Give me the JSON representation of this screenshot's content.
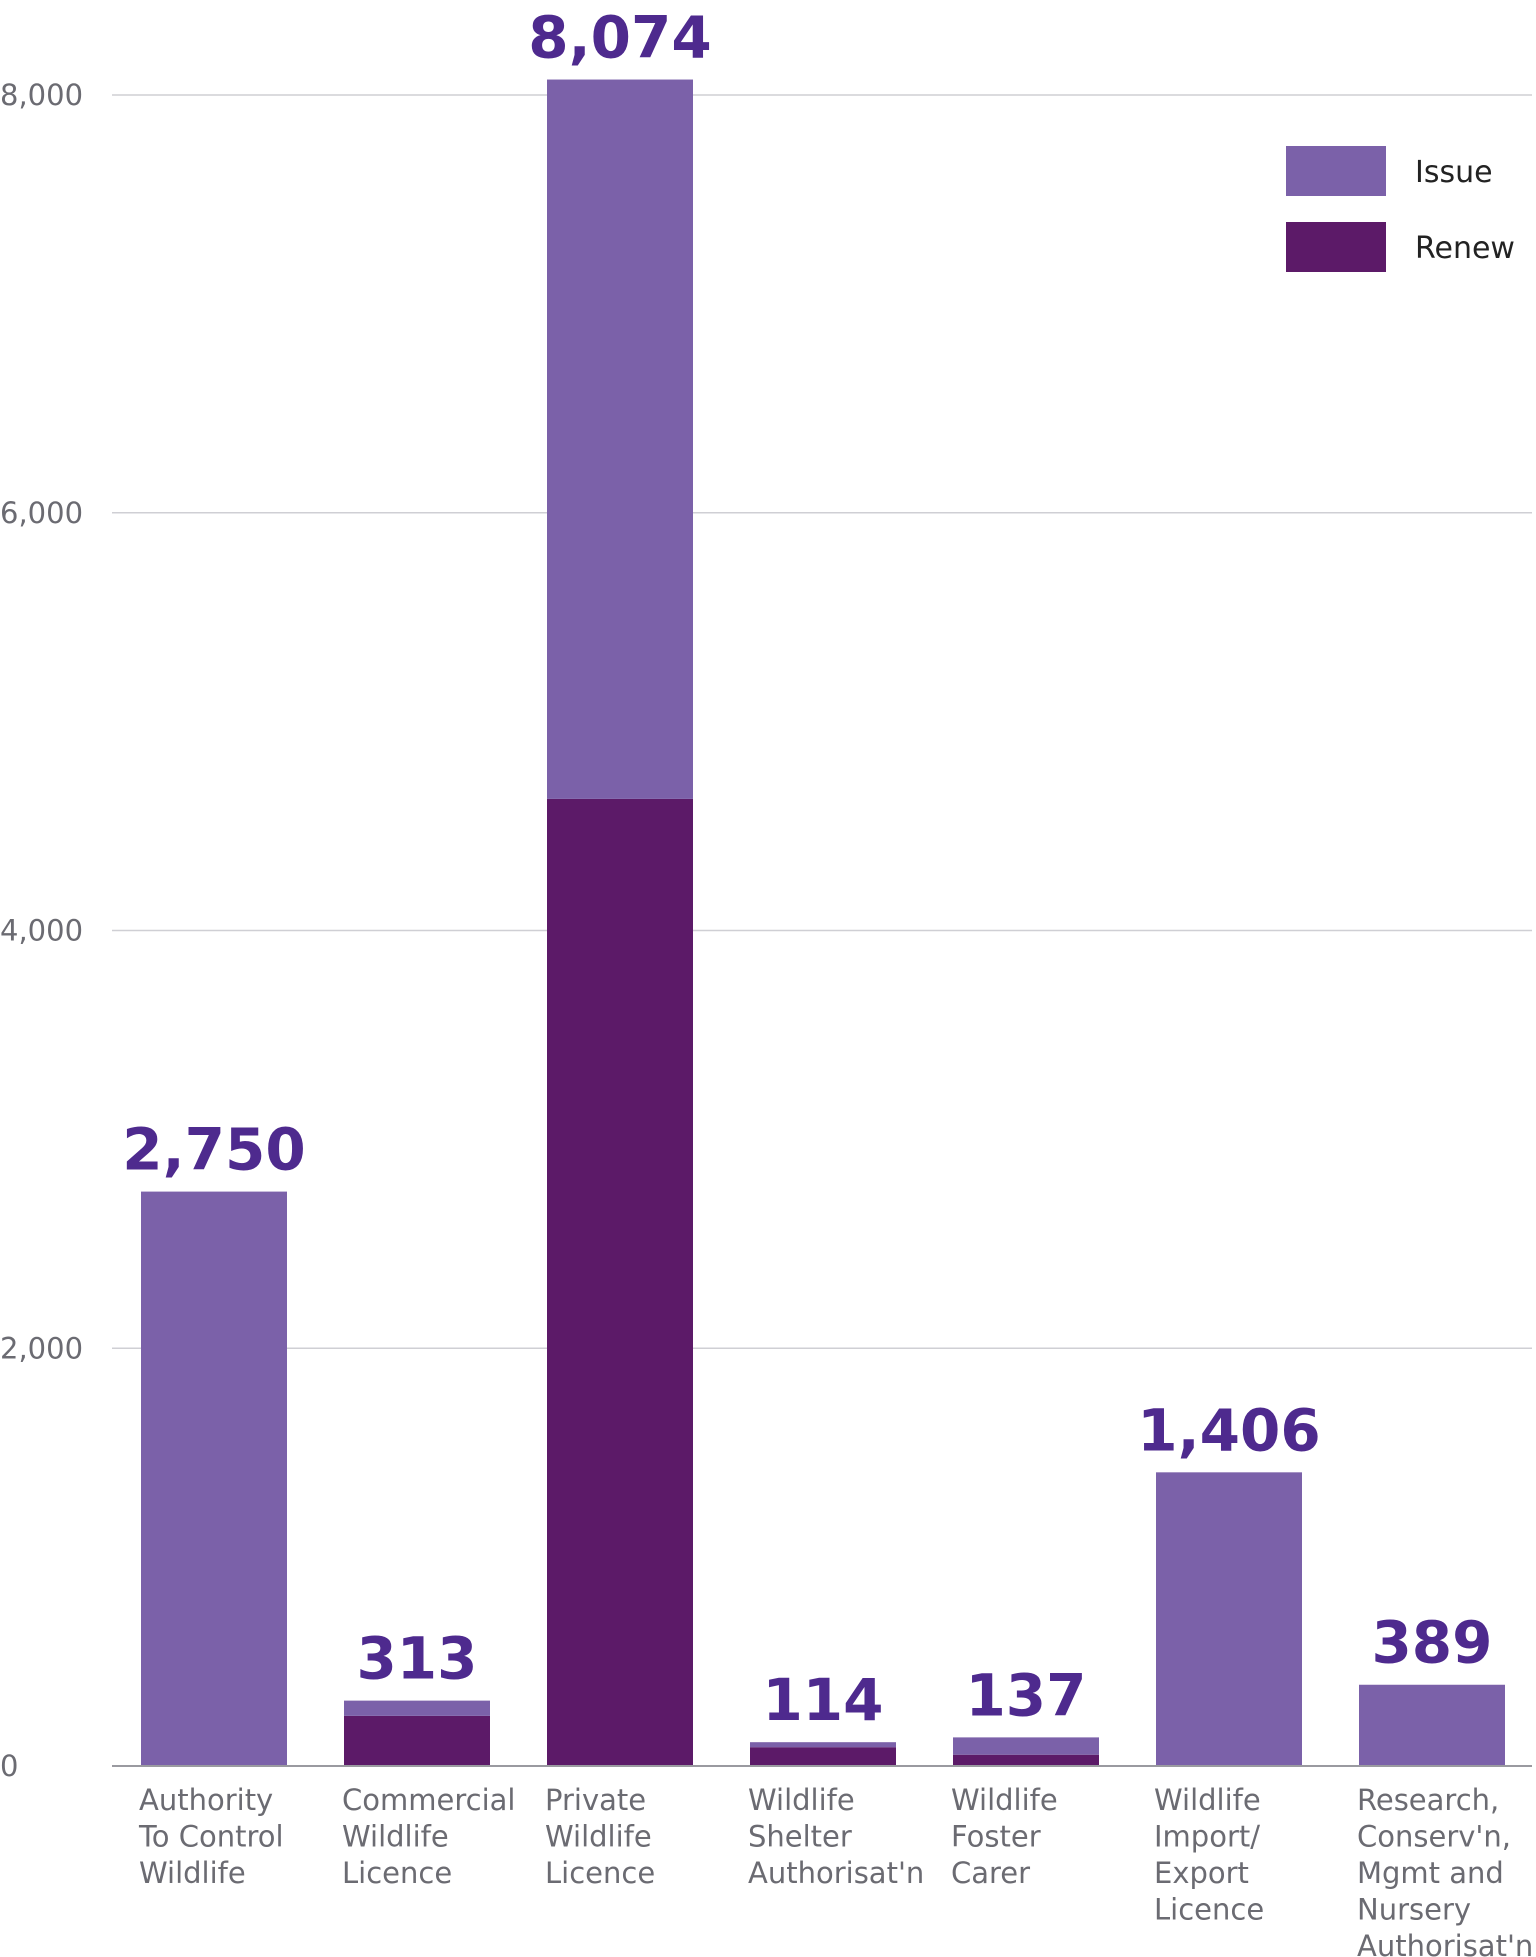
{
  "chart_data": {
    "type": "stacked_bar",
    "categories": [
      [
        "Authority",
        "To Control",
        "Wildlife"
      ],
      [
        "Commercial",
        "Wildlife",
        "Licence"
      ],
      [
        "Private",
        "Wildlife",
        "Licence"
      ],
      [
        "Wildlife",
        "Shelter",
        "Authorisat'n"
      ],
      [
        "Wildlife",
        "Foster",
        "Carer"
      ],
      [
        "Wildlife",
        "Import/",
        "Export",
        "Licence"
      ],
      [
        "Research,",
        "Conserv'n,",
        "Mgmt and",
        "Nursery",
        "Authorisat'n"
      ]
    ],
    "series": [
      {
        "name": "Renew",
        "color": "#5c1a68",
        "values": [
          0,
          240,
          4630,
          90,
          54,
          0,
          0
        ]
      },
      {
        "name": "Issue",
        "color": "#7b61a9",
        "values": [
          2750,
          73,
          3444,
          24,
          83,
          1406,
          389
        ]
      }
    ],
    "totals": [
      2750,
      313,
      8074,
      114,
      137,
      1406,
      389
    ],
    "total_labels": [
      "2,750",
      "313",
      "8,074",
      "114",
      "137",
      "1,406",
      "389"
    ],
    "ylim": [
      0,
      8000
    ],
    "yticks": [
      0,
      {
        "value": 2000,
        "label": "2,000"
      },
      {
        "value": 4000,
        "label": "4,000"
      },
      {
        "value": 6000,
        "label": "6,000"
      },
      {
        "value": 8000,
        "label": "8,000"
      }
    ],
    "grid": true,
    "legend": "top-right"
  }
}
